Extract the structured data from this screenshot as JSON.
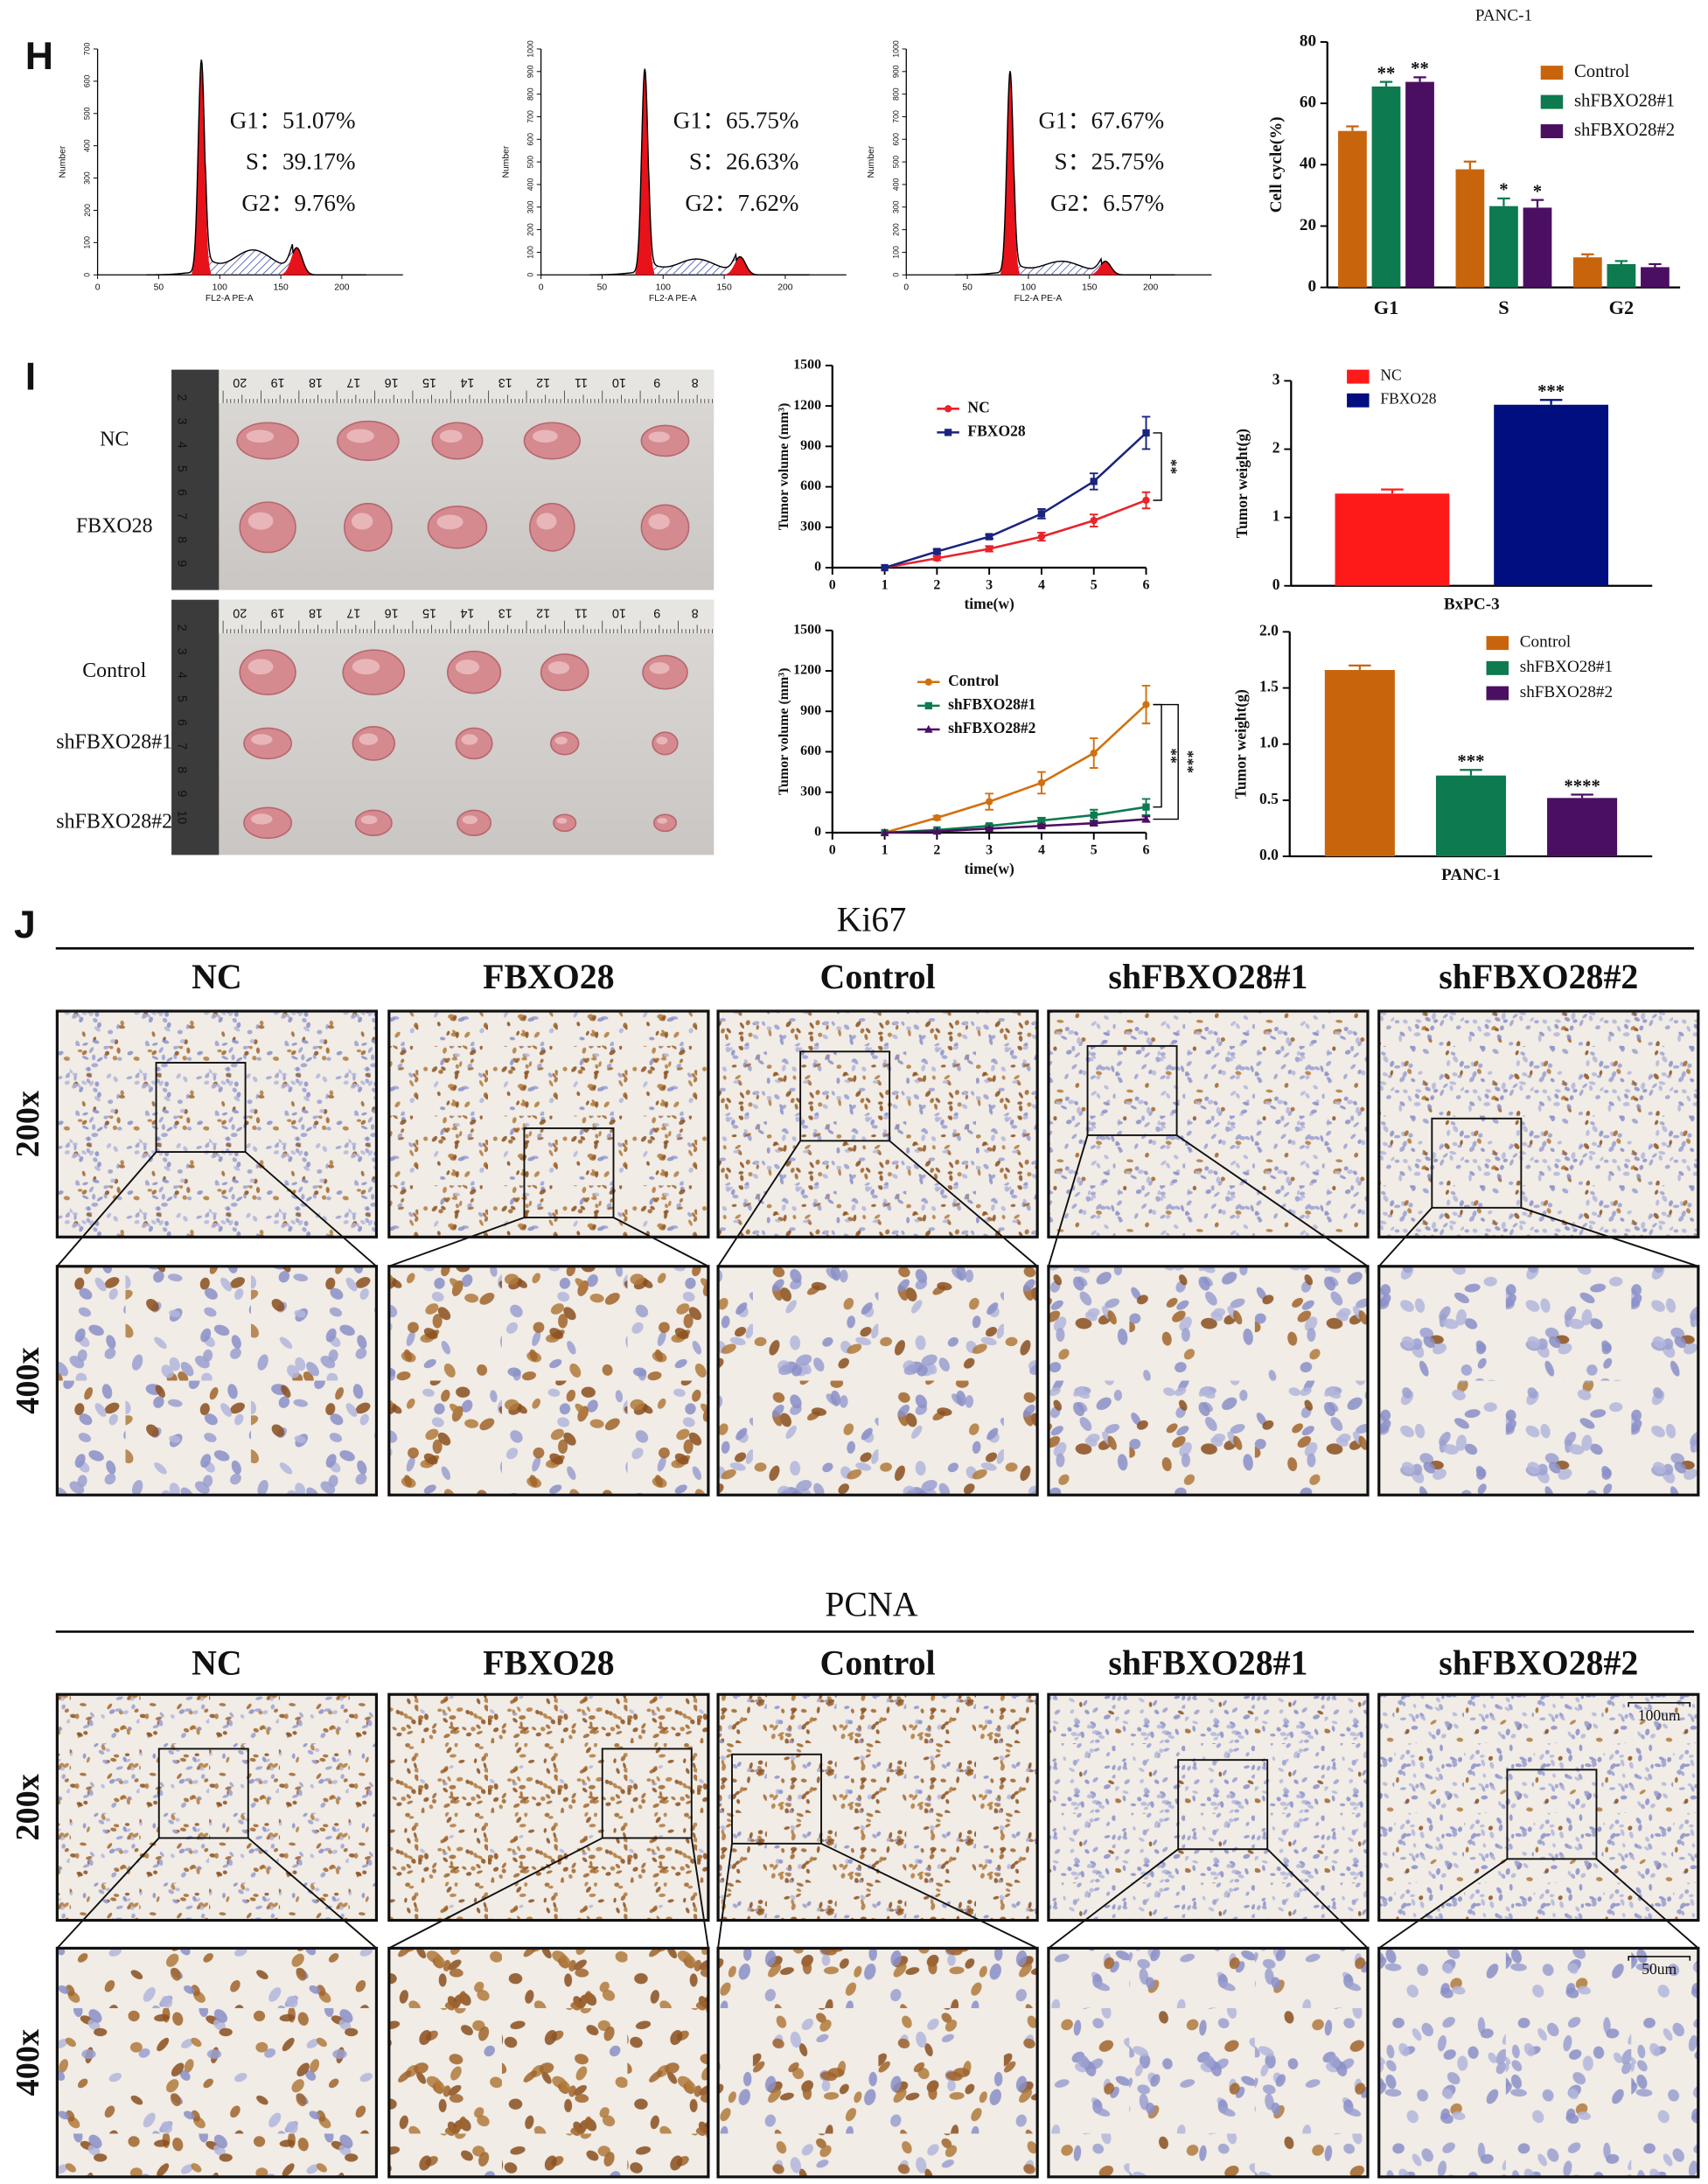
{
  "panel_labels": [
    "H",
    "I",
    "J"
  ],
  "flow_cytometry": {
    "xlabel": "FL2-A PE-A",
    "ylabel": "Number",
    "xlim": [
      0,
      250
    ],
    "xticks": [
      0,
      50,
      100,
      150,
      200
    ],
    "panels": [
      {
        "ylim": [
          0,
          700
        ],
        "yticks": [
          0,
          100,
          200,
          300,
          400,
          500,
          600,
          700
        ],
        "stats": [
          "G1：51.07%",
          "S：39.17%",
          "G2：9.76%"
        ]
      },
      {
        "ylim": [
          0,
          1000
        ],
        "yticks": [
          0,
          100,
          200,
          300,
          400,
          500,
          600,
          700,
          800,
          900,
          1000
        ],
        "stats": [
          "G1：65.75%",
          "S：26.63%",
          "G2：7.62%"
        ]
      },
      {
        "ylim": [
          0,
          1000
        ],
        "yticks": [
          0,
          100,
          200,
          300,
          400,
          500,
          600,
          700,
          800,
          900,
          1000
        ],
        "stats": [
          "G1：67.67%",
          "S：25.75%",
          "G2：6.57%"
        ]
      }
    ]
  },
  "chart_data": [
    {
      "type": "bar",
      "title": "PANC-1",
      "ylabel": "Cell cycle(%)",
      "categories": [
        "G1",
        "S",
        "G2"
      ],
      "ylim": [
        0,
        80
      ],
      "yticks": [
        0,
        20,
        40,
        60,
        80
      ],
      "legend": "upper right",
      "series": [
        {
          "name": "Control",
          "color": "#c8650c",
          "values": [
            51,
            38.5,
            9.8
          ],
          "errors": [
            1.5,
            2.5,
            1
          ]
        },
        {
          "name": "shFBXO28#1",
          "color": "#0d7a4f",
          "values": [
            65.5,
            26.5,
            7.6
          ],
          "errors": [
            1.5,
            2.5,
            1
          ],
          "significance": [
            "**",
            "*",
            null
          ]
        },
        {
          "name": "shFBXO28#2",
          "color": "#4b0f62",
          "values": [
            67,
            26,
            6.6
          ],
          "errors": [
            1.5,
            2.5,
            1
          ],
          "significance": [
            "**",
            "*",
            null
          ]
        }
      ]
    },
    {
      "type": "line",
      "ylabel": "Tumor volume (mm³)",
      "xlabel": "time(w)",
      "x": [
        1,
        2,
        3,
        4,
        5,
        6
      ],
      "xlim": [
        0,
        6
      ],
      "xticks": [
        0,
        1,
        2,
        3,
        4,
        5,
        6
      ],
      "ylim": [
        0,
        1500
      ],
      "yticks": [
        0,
        300,
        600,
        900,
        1200,
        1500
      ],
      "annotations": [
        "**"
      ],
      "series": [
        {
          "name": "NC",
          "color": "#e8232a",
          "values": [
            0,
            70,
            140,
            230,
            350,
            500
          ],
          "errors": [
            0,
            15,
            20,
            30,
            45,
            60
          ]
        },
        {
          "name": "FBXO28",
          "color": "#1b237e",
          "values": [
            0,
            120,
            230,
            400,
            640,
            1000
          ],
          "errors": [
            0,
            15,
            15,
            35,
            60,
            120
          ]
        }
      ]
    },
    {
      "type": "bar",
      "ylabel": "Tumor weight(g)",
      "xlabel": "BxPC-3",
      "categories": [
        null
      ],
      "ylim": [
        0,
        3
      ],
      "yticks": [
        0,
        1,
        2,
        3
      ],
      "legend": "upper left",
      "series": [
        {
          "name": "NC",
          "color": "#ff1a1a",
          "values": [
            1.35
          ],
          "errors": [
            0.06
          ]
        },
        {
          "name": "FBXO28",
          "color": "#000e7f",
          "values": [
            2.65
          ],
          "errors": [
            0.07
          ],
          "significance": [
            "***"
          ]
        }
      ]
    },
    {
      "type": "line",
      "ylabel": "Tumor volume (mm³)",
      "xlabel": "time(w)",
      "x": [
        1,
        2,
        3,
        4,
        5,
        6
      ],
      "xlim": [
        0,
        6
      ],
      "xticks": [
        0,
        1,
        2,
        3,
        4,
        5,
        6
      ],
      "ylim": [
        0,
        1500
      ],
      "yticks": [
        0,
        300,
        600,
        900,
        1200,
        1500
      ],
      "annotations": [
        "**",
        "***"
      ],
      "series": [
        {
          "name": "Control",
          "color": "#d1700f",
          "values": [
            0,
            110,
            230,
            370,
            590,
            950
          ],
          "errors": [
            0,
            15,
            60,
            80,
            110,
            140
          ]
        },
        {
          "name": "shFBXO28#1",
          "color": "#0d7a4f",
          "values": [
            0,
            20,
            50,
            90,
            130,
            190
          ],
          "errors": [
            0,
            5,
            10,
            20,
            40,
            60
          ]
        },
        {
          "name": "shFBXO28#2",
          "color": "#4b0f62",
          "values": [
            0,
            10,
            30,
            50,
            70,
            100
          ],
          "errors": [
            0,
            5,
            8,
            10,
            15,
            20
          ]
        }
      ]
    },
    {
      "type": "bar",
      "ylabel": "Tumor weight(g)",
      "xlabel": "PANC-1",
      "categories": [
        null
      ],
      "ylim": [
        0,
        2
      ],
      "yticks": [
        {
          "value": 0,
          "label": "0.0"
        },
        {
          "value": 0.5,
          "label": "0.5"
        },
        {
          "value": 1,
          "label": "1.0"
        },
        {
          "value": 1.5,
          "label": "1.5"
        },
        {
          "value": 2,
          "label": "2.0"
        }
      ],
      "legend": "upper right",
      "series": [
        {
          "name": "Control",
          "color": "#c8650c",
          "values": [
            1.66
          ],
          "errors": [
            0.04
          ]
        },
        {
          "name": "shFBXO28#1",
          "color": "#0d7a4f",
          "values": [
            0.72
          ],
          "errors": [
            0.05
          ],
          "significance": [
            "***"
          ]
        },
        {
          "name": "shFBXO28#2",
          "color": "#4b0f62",
          "values": [
            0.52
          ],
          "errors": [
            0.03
          ],
          "significance": [
            "****"
          ]
        }
      ]
    }
  ],
  "tumor_photos": [
    {
      "ruler": [
        20,
        19,
        18,
        17,
        16,
        15,
        14,
        13,
        12,
        11,
        10,
        9,
        8
      ],
      "ruler_side": [
        2,
        3,
        4,
        5,
        6,
        7,
        8,
        9
      ],
      "rows": [
        "NC",
        "FBXO28"
      ]
    },
    {
      "ruler": [
        20,
        19,
        18,
        17,
        16,
        15,
        14,
        13,
        12,
        11,
        10,
        9,
        8
      ],
      "ruler_side": [
        2,
        3,
        4,
        5,
        6,
        7,
        8,
        9,
        10
      ],
      "rows": [
        "Control",
        "shFBXO28#1",
        "shFBXO28#2"
      ]
    }
  ],
  "ihc": [
    {
      "title": "Ki67",
      "columns": [
        "NC",
        "FBXO28",
        "Control",
        "shFBXO28#1",
        "shFBXO28#2"
      ],
      "rows": [
        "200x",
        "400x"
      ]
    },
    {
      "title": "PCNA",
      "columns": [
        "NC",
        "FBXO28",
        "Control",
        "shFBXO28#1",
        "shFBXO28#2"
      ],
      "rows": [
        "200x",
        "400x"
      ],
      "scale_bars": [
        "100um",
        "50um"
      ]
    }
  ]
}
